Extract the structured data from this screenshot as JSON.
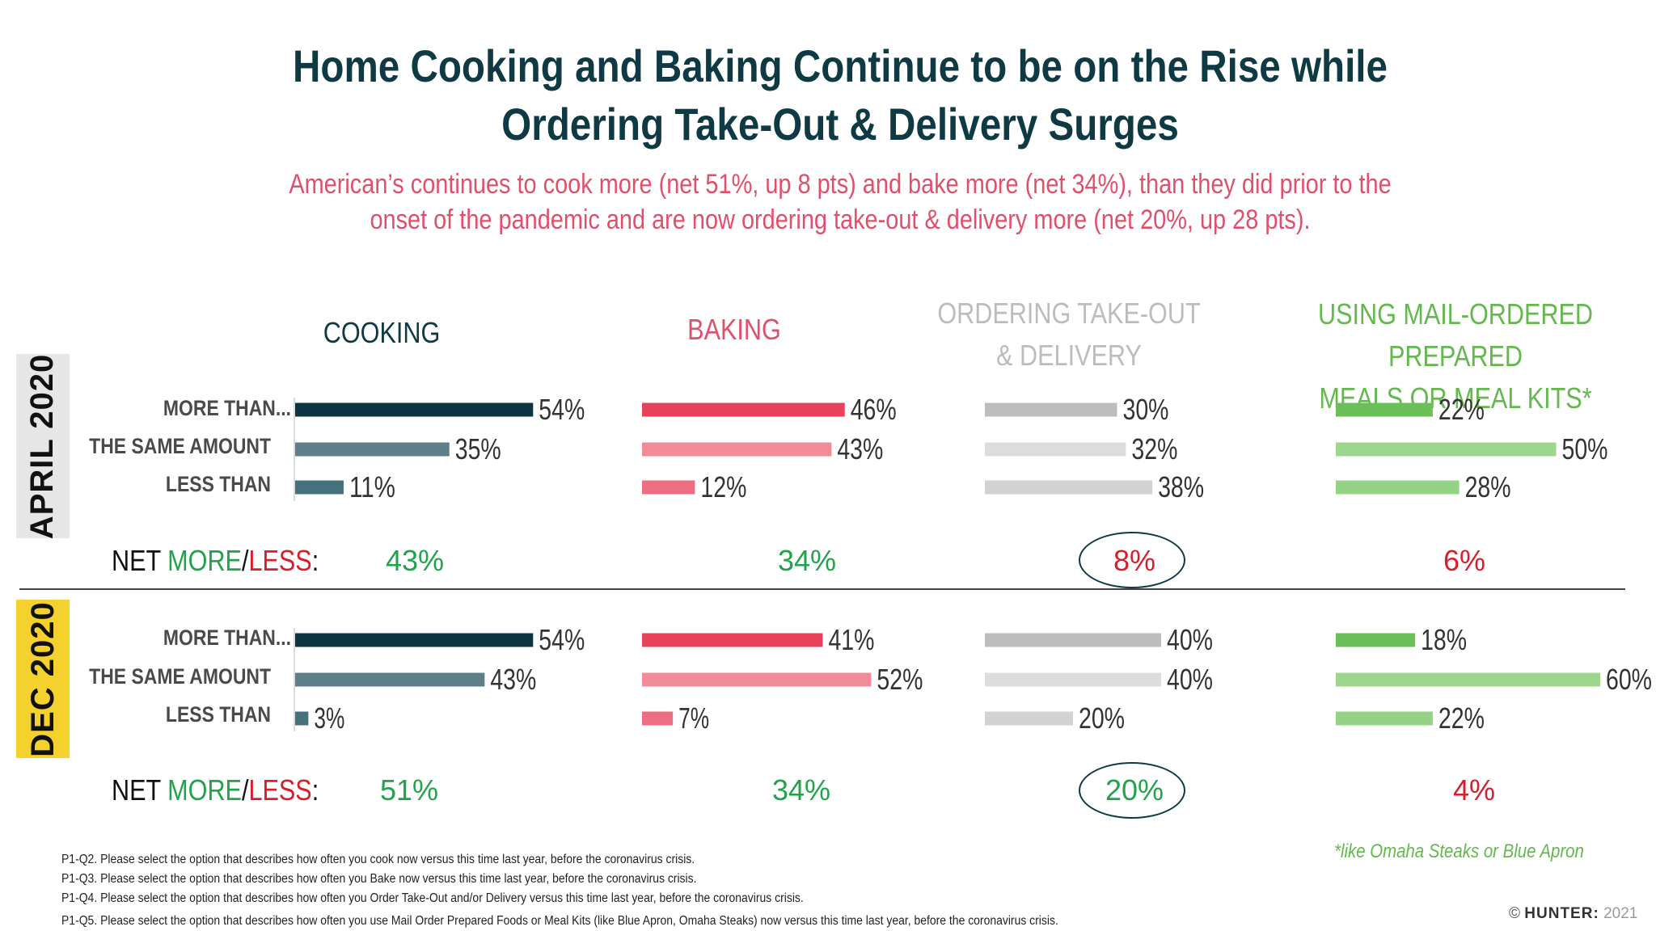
{
  "title": {
    "line1": "Home Cooking and Baking Continue to be on the Rise while",
    "line2": "Ordering Take-Out & Delivery Surges"
  },
  "subtitle": {
    "line1": "American’s continues to cook more (net 51%, up 8 pts) and bake more (net 34%), than they did prior to the",
    "line2": "onset of the pandemic and are now ordering take-out & delivery more (net 20%, up 28 pts)."
  },
  "columns": {
    "cooking": "COOKING",
    "baking": "BAKING",
    "takeout_line1": "ORDERING TAKE-OUT",
    "takeout_line2": "& DELIVERY",
    "mail_line1": "USING MAIL-ORDERED PREPARED",
    "mail_line2": "MEALS OR  MEAL KITS*"
  },
  "row_labels": [
    "MORE THAN...",
    "THE SAME AMOUNT",
    "LESS THAN"
  ],
  "periods": [
    "APRIL 2020",
    "DEC 2020"
  ],
  "net_label": {
    "prefix": "NET ",
    "more": "MORE",
    "slash": "/",
    "less": "LESS",
    "colon": ":"
  },
  "net_values": {
    "april": [
      "43%",
      "34%",
      "8%",
      "6%"
    ],
    "dec": [
      "51%",
      "34%",
      "20%",
      "4%"
    ]
  },
  "colors": {
    "cooking": [
      "#0d3440",
      "#5e7f8a",
      "#46707c"
    ],
    "baking": [
      "#e8415a",
      "#f28a98",
      "#ee6d82"
    ],
    "takeout": [
      "#bdbdbd",
      "#dcdcdc",
      "#d2d2d2"
    ],
    "mail": [
      "#6abf58",
      "#9ed68d",
      "#94d285"
    ],
    "net_green": "#22a24a",
    "net_red": "#d81e2c"
  },
  "chart_data": [
    {
      "type": "bar",
      "title": "COOKING",
      "categories": [
        "MORE THAN...",
        "THE SAME AMOUNT",
        "LESS THAN"
      ],
      "series": [
        {
          "name": "APRIL 2020",
          "values": [
            54,
            35,
            11
          ]
        },
        {
          "name": "DEC 2020",
          "values": [
            54,
            43,
            3
          ]
        }
      ]
    },
    {
      "type": "bar",
      "title": "BAKING",
      "categories": [
        "MORE THAN...",
        "THE SAME AMOUNT",
        "LESS THAN"
      ],
      "series": [
        {
          "name": "APRIL 2020",
          "values": [
            46,
            43,
            12
          ]
        },
        {
          "name": "DEC 2020",
          "values": [
            41,
            52,
            7
          ]
        }
      ]
    },
    {
      "type": "bar",
      "title": "ORDERING TAKE-OUT & DELIVERY",
      "categories": [
        "MORE THAN...",
        "THE SAME AMOUNT",
        "LESS THAN"
      ],
      "series": [
        {
          "name": "APRIL 2020",
          "values": [
            30,
            32,
            38
          ]
        },
        {
          "name": "DEC 2020",
          "values": [
            40,
            40,
            20
          ]
        }
      ]
    },
    {
      "type": "bar",
      "title": "USING MAIL-ORDERED PREPARED MEALS OR  MEAL KITS*",
      "categories": [
        "MORE THAN...",
        "THE SAME AMOUNT",
        "LESS THAN"
      ],
      "series": [
        {
          "name": "APRIL 2020",
          "values": [
            22,
            50,
            28
          ]
        },
        {
          "name": "DEC 2020",
          "values": [
            18,
            60,
            22
          ]
        }
      ]
    }
  ],
  "footnote_example": "*like Omaha Steaks or Blue Apron",
  "footnotes": [
    "P1-Q2. Please select the option that describes how often you cook now versus this time last year, before the coronavirus crisis.",
    "P1-Q3. Please select the option that describes how often you Bake now versus this time last year, before the coronavirus crisis.",
    "P1-Q4. Please select the option that describes how often you Order Take-Out and/or Delivery versus this time last year, before the coronavirus crisis.",
    "P1-Q5. Please select the option that describes how often you use Mail Order Prepared Foods or Meal Kits (like Blue Apron, Omaha Steaks) now versus this time last year, before the coronavirus crisis."
  ],
  "copyright": {
    "symbol": "©",
    "brand": "HUNTER:",
    "year": "2021"
  }
}
